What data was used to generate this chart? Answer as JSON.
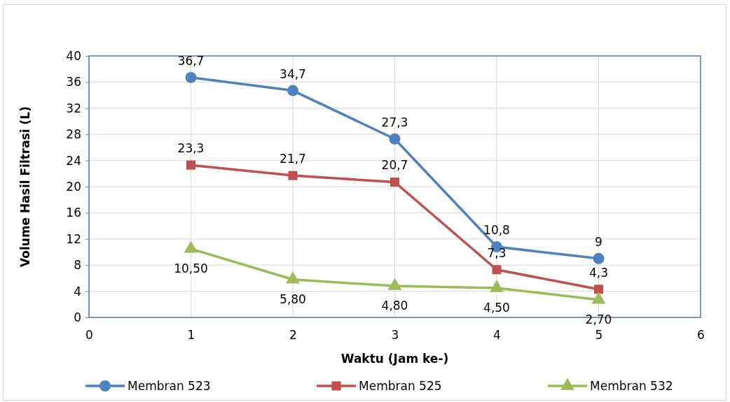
{
  "chart_data": {
    "type": "line",
    "xlabel": "Waktu (Jam ke-)",
    "ylabel": "Volume Hasil Filtrasi (L)",
    "x": [
      1,
      2,
      3,
      4,
      5
    ],
    "xlim": [
      0,
      6
    ],
    "xticks": [
      0,
      1,
      2,
      3,
      4,
      5,
      6
    ],
    "ylim": [
      0,
      40
    ],
    "yticks": [
      0,
      4,
      8,
      12,
      16,
      20,
      24,
      28,
      32,
      36,
      40
    ],
    "grid": true,
    "legend": "bottom",
    "line_style": "solid",
    "series": [
      {
        "name": "Membran 523",
        "color": "#4f81bd",
        "marker": "circle",
        "values": [
          36.7,
          34.7,
          27.3,
          10.8,
          9
        ],
        "value_labels": [
          "36,7",
          "34,7",
          "27,3",
          "10,8",
          "9"
        ]
      },
      {
        "name": "Membran 525",
        "color": "#c0504d",
        "marker": "square",
        "values": [
          23.3,
          21.7,
          20.7,
          7.3,
          4.3
        ],
        "value_labels": [
          "23,3",
          "21,7",
          "20,7",
          "7,3",
          "4,3"
        ]
      },
      {
        "name": "Membran 532",
        "color": "#9bbb59",
        "marker": "triangle",
        "values": [
          10.5,
          5.8,
          4.8,
          4.5,
          2.7
        ],
        "value_labels": [
          "10,50",
          "5,80",
          "4,80",
          "4,50",
          "2,70"
        ]
      }
    ]
  }
}
